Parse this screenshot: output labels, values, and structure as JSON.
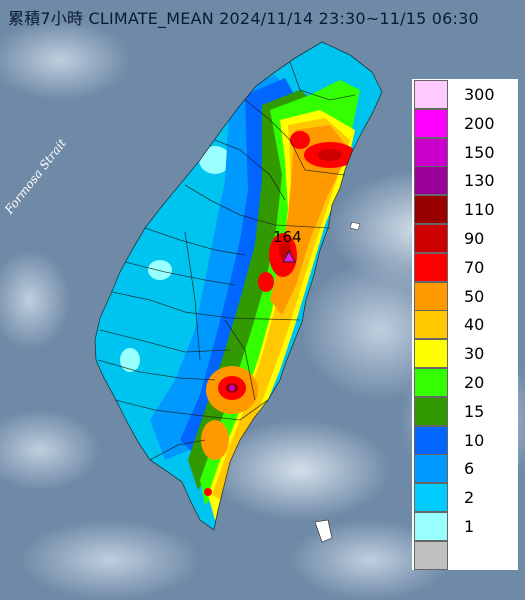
{
  "title": "累積7小時 CLIMATE_MEAN 2024/11/14 23:30~11/15 06:30",
  "strait_label": "Formosa Strait",
  "peak_value": "164",
  "legend": {
    "entries": [
      {
        "label": "300",
        "color": "#ffcaff"
      },
      {
        "label": "200",
        "color": "#ff00ff"
      },
      {
        "label": "150",
        "color": "#cc00cc"
      },
      {
        "label": "130",
        "color": "#990099"
      },
      {
        "label": "110",
        "color": "#990000"
      },
      {
        "label": "90",
        "color": "#cc0000"
      },
      {
        "label": "70",
        "color": "#ff0000"
      },
      {
        "label": "50",
        "color": "#ff9900"
      },
      {
        "label": "40",
        "color": "#ffc800"
      },
      {
        "label": "30",
        "color": "#ffff00"
      },
      {
        "label": "20",
        "color": "#33ff00"
      },
      {
        "label": "15",
        "color": "#339900"
      },
      {
        "label": "10",
        "color": "#0066ff"
      },
      {
        "label": "6",
        "color": "#0099ff"
      },
      {
        "label": "2",
        "color": "#00ccff"
      },
      {
        "label": "1",
        "color": "#99ffff"
      },
      {
        "label": "",
        "color": "#c0c0c0"
      }
    ]
  }
}
